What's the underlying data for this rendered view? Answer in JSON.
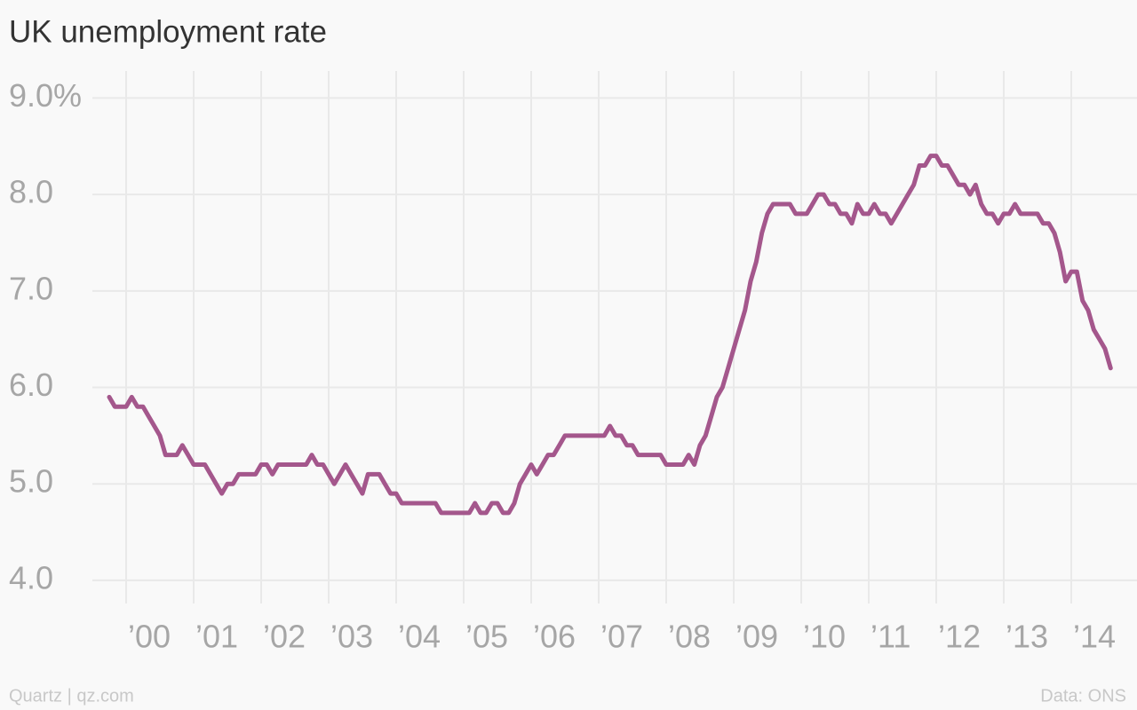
{
  "chart_data": {
    "type": "line",
    "title": "UK unemployment rate",
    "source_left": "Quartz | qz.com",
    "source_right": "Data: ONS",
    "grid": true,
    "xlim": [
      1999.5,
      2014.816
    ],
    "ylim": [
      3.76,
      9.28
    ],
    "yticks": [
      {
        "value": 4,
        "label": "4.0"
      },
      {
        "value": 5,
        "label": "5.0"
      },
      {
        "value": 6,
        "label": "6.0"
      },
      {
        "value": 7,
        "label": "7.0"
      },
      {
        "value": 8,
        "label": "8.0"
      },
      {
        "value": 9,
        "label": "9.0%"
      }
    ],
    "xticks": [
      {
        "value": 2000,
        "label": "’00"
      },
      {
        "value": 2001,
        "label": "’01"
      },
      {
        "value": 2002,
        "label": "’02"
      },
      {
        "value": 2003,
        "label": "’03"
      },
      {
        "value": 2004,
        "label": "’04"
      },
      {
        "value": 2005,
        "label": "’05"
      },
      {
        "value": 2006,
        "label": "’06"
      },
      {
        "value": 2007,
        "label": "’07"
      },
      {
        "value": 2008,
        "label": "’08"
      },
      {
        "value": 2009,
        "label": "’09"
      },
      {
        "value": 2010,
        "label": "’10"
      },
      {
        "value": 2011,
        "label": "’11"
      },
      {
        "value": 2012,
        "label": "’12"
      },
      {
        "value": 2013,
        "label": "’13"
      },
      {
        "value": 2014,
        "label": "’14"
      }
    ],
    "x": [
      1999.75,
      1999.833,
      1999.917,
      2000,
      2000.083,
      2000.167,
      2000.25,
      2000.333,
      2000.417,
      2000.5,
      2000.583,
      2000.667,
      2000.75,
      2000.833,
      2000.917,
      2001,
      2001.083,
      2001.167,
      2001.25,
      2001.333,
      2001.417,
      2001.5,
      2001.583,
      2001.667,
      2001.75,
      2001.833,
      2001.917,
      2002,
      2002.083,
      2002.167,
      2002.25,
      2002.333,
      2002.417,
      2002.5,
      2002.583,
      2002.667,
      2002.75,
      2002.833,
      2002.917,
      2003,
      2003.083,
      2003.167,
      2003.25,
      2003.333,
      2003.417,
      2003.5,
      2003.583,
      2003.667,
      2003.75,
      2003.833,
      2003.917,
      2004,
      2004.083,
      2004.167,
      2004.25,
      2004.333,
      2004.417,
      2004.5,
      2004.583,
      2004.667,
      2004.75,
      2004.833,
      2004.917,
      2005,
      2005.083,
      2005.167,
      2005.25,
      2005.333,
      2005.417,
      2005.5,
      2005.583,
      2005.667,
      2005.75,
      2005.833,
      2005.917,
      2006,
      2006.083,
      2006.167,
      2006.25,
      2006.333,
      2006.417,
      2006.5,
      2006.583,
      2006.667,
      2006.75,
      2006.833,
      2006.917,
      2007,
      2007.083,
      2007.167,
      2007.25,
      2007.333,
      2007.417,
      2007.5,
      2007.583,
      2007.667,
      2007.75,
      2007.833,
      2007.917,
      2008,
      2008.083,
      2008.167,
      2008.25,
      2008.333,
      2008.417,
      2008.5,
      2008.583,
      2008.667,
      2008.75,
      2008.833,
      2008.917,
      2009,
      2009.083,
      2009.167,
      2009.25,
      2009.333,
      2009.417,
      2009.5,
      2009.583,
      2009.667,
      2009.75,
      2009.833,
      2009.917,
      2010,
      2010.083,
      2010.167,
      2010.25,
      2010.333,
      2010.417,
      2010.5,
      2010.583,
      2010.667,
      2010.75,
      2010.833,
      2010.917,
      2011,
      2011.083,
      2011.167,
      2011.25,
      2011.333,
      2011.417,
      2011.5,
      2011.583,
      2011.667,
      2011.75,
      2011.833,
      2011.917,
      2012,
      2012.083,
      2012.167,
      2012.25,
      2012.333,
      2012.417,
      2012.5,
      2012.583,
      2012.667,
      2012.75,
      2012.833,
      2012.917,
      2013,
      2013.083,
      2013.167,
      2013.25,
      2013.333,
      2013.417,
      2013.5,
      2013.583,
      2013.667,
      2013.75,
      2013.833,
      2013.917,
      2014,
      2014.083,
      2014.167,
      2014.25,
      2014.333,
      2014.417,
      2014.5,
      2014.583
    ],
    "series": [
      {
        "name": "Unemployment rate",
        "color": "#a4578c",
        "values": [
          5.9,
          5.8,
          5.8,
          5.8,
          5.9,
          5.8,
          5.8,
          5.7,
          5.6,
          5.5,
          5.3,
          5.3,
          5.3,
          5.4,
          5.3,
          5.2,
          5.2,
          5.2,
          5.1,
          5.0,
          4.9,
          5.0,
          5.0,
          5.1,
          5.1,
          5.1,
          5.1,
          5.2,
          5.2,
          5.1,
          5.2,
          5.2,
          5.2,
          5.2,
          5.2,
          5.2,
          5.3,
          5.2,
          5.2,
          5.1,
          5.0,
          5.1,
          5.2,
          5.1,
          5.0,
          4.9,
          5.1,
          5.1,
          5.1,
          5.0,
          4.9,
          4.9,
          4.8,
          4.8,
          4.8,
          4.8,
          4.8,
          4.8,
          4.8,
          4.7,
          4.7,
          4.7,
          4.7,
          4.7,
          4.7,
          4.8,
          4.7,
          4.7,
          4.8,
          4.8,
          4.7,
          4.7,
          4.8,
          5.0,
          5.1,
          5.2,
          5.1,
          5.2,
          5.3,
          5.3,
          5.4,
          5.5,
          5.5,
          5.5,
          5.5,
          5.5,
          5.5,
          5.5,
          5.5,
          5.6,
          5.5,
          5.5,
          5.4,
          5.4,
          5.3,
          5.3,
          5.3,
          5.3,
          5.3,
          5.2,
          5.2,
          5.2,
          5.2,
          5.3,
          5.2,
          5.4,
          5.5,
          5.7,
          5.9,
          6.0,
          6.2,
          6.4,
          6.6,
          6.8,
          7.1,
          7.3,
          7.6,
          7.8,
          7.9,
          7.9,
          7.9,
          7.9,
          7.8,
          7.8,
          7.8,
          7.9,
          8.0,
          8.0,
          7.9,
          7.9,
          7.8,
          7.8,
          7.7,
          7.9,
          7.8,
          7.8,
          7.9,
          7.8,
          7.8,
          7.7,
          7.8,
          7.9,
          8.0,
          8.1,
          8.3,
          8.3,
          8.4,
          8.4,
          8.3,
          8.3,
          8.2,
          8.1,
          8.1,
          8.0,
          8.1,
          7.9,
          7.8,
          7.8,
          7.7,
          7.8,
          7.8,
          7.9,
          7.8,
          7.8,
          7.8,
          7.8,
          7.7,
          7.7,
          7.6,
          7.4,
          7.1,
          7.2,
          7.2,
          6.9,
          6.8,
          6.6,
          6.5,
          6.4,
          6.2
        ]
      }
    ]
  }
}
